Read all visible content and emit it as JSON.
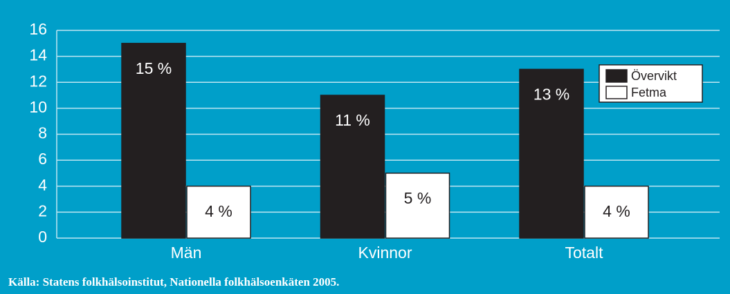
{
  "chart_data": {
    "type": "bar",
    "categories": [
      "Män",
      "Kvinnor",
      "Totalt"
    ],
    "series": [
      {
        "name": "Övervikt",
        "color": "#231f20",
        "values": [
          15,
          11,
          13
        ],
        "value_labels": [
          "15 %",
          "11 %",
          "13 %"
        ]
      },
      {
        "name": "Fetma",
        "color": "#ffffff",
        "values": [
          4,
          5,
          4
        ],
        "value_labels": [
          "4 %",
          "5 %",
          "4 %"
        ]
      }
    ],
    "ylim": [
      0,
      16
    ],
    "yticks": [
      0,
      2,
      4,
      6,
      8,
      10,
      12,
      14,
      16
    ],
    "grid": true,
    "legend": "upper right",
    "source": "Källa: Statens folkhälsoinstitut, Nationella folkhälsoenkäten 2005."
  }
}
